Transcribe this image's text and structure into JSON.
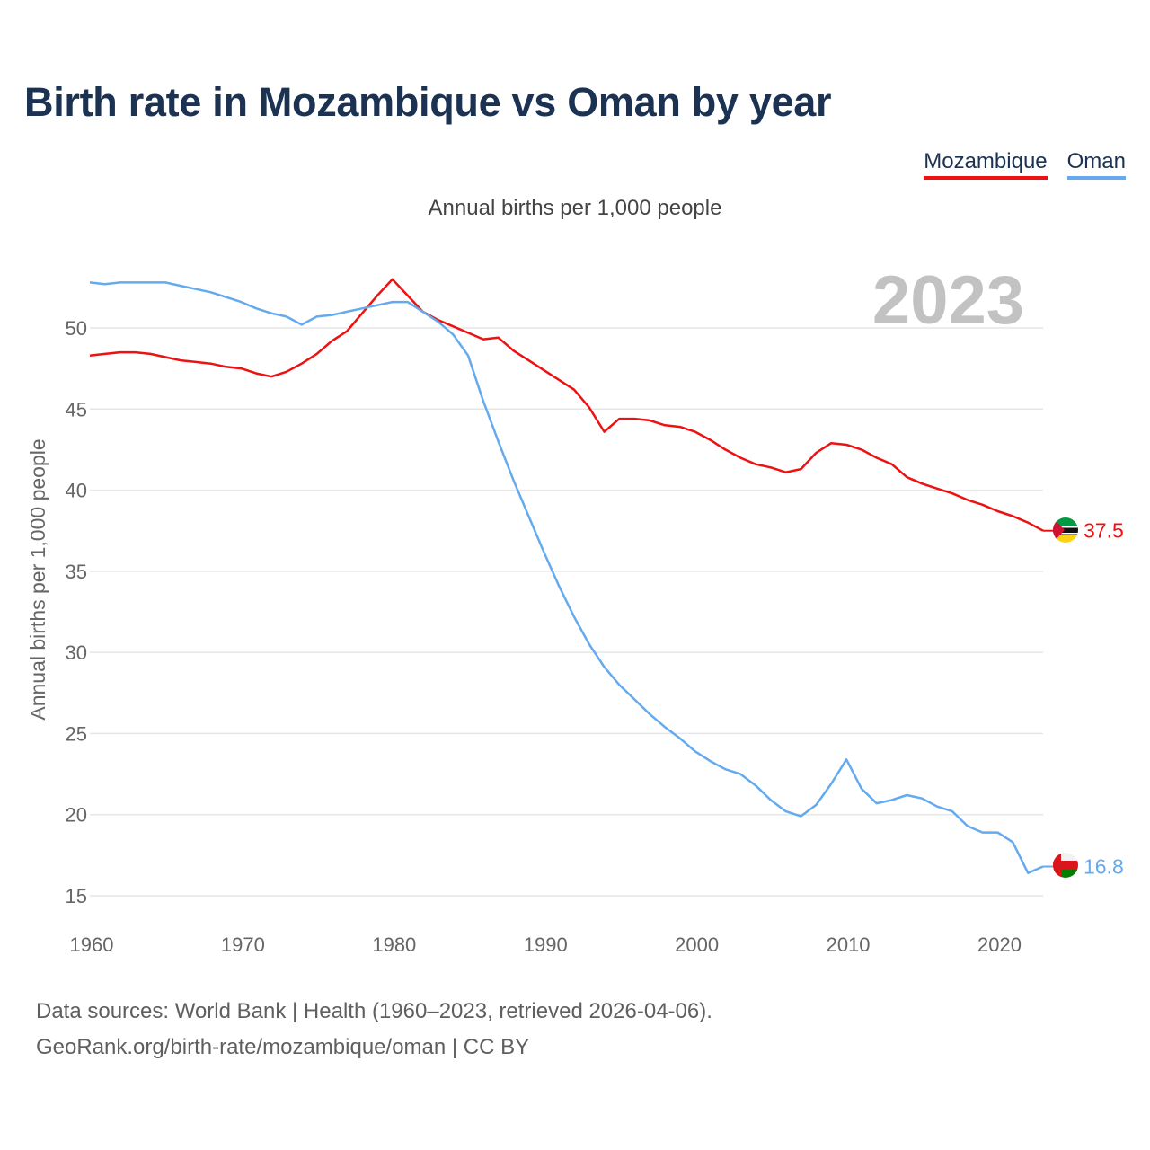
{
  "title": "Birth rate in Mozambique vs Oman by year",
  "subtitle": "Annual births per 1,000 people",
  "legend": [
    {
      "label": "Mozambique",
      "color": "#ee1111"
    },
    {
      "label": "Oman",
      "color": "#66aaee"
    }
  ],
  "footer": {
    "line1": "Data sources: World Bank | Health (1960–2023, retrieved 2026-04-06).",
    "line2": "GeoRank.org/birth-rate/mozambique/oman | CC BY"
  },
  "chart_data": {
    "type": "line",
    "title": "Birth rate in Mozambique vs Oman by year",
    "ylabel": "Annual births per 1,000 people",
    "xlabel": "",
    "year_label": "2023",
    "xlim": [
      1960,
      2023
    ],
    "ylim": [
      15,
      53
    ],
    "x_ticks": [
      1960,
      1970,
      1980,
      1990,
      2000,
      2010,
      2020
    ],
    "y_ticks": [
      15,
      20,
      25,
      30,
      35,
      40,
      45,
      50
    ],
    "grid": true,
    "x": [
      1960,
      1961,
      1962,
      1963,
      1964,
      1965,
      1966,
      1967,
      1968,
      1969,
      1970,
      1971,
      1972,
      1973,
      1974,
      1975,
      1976,
      1977,
      1978,
      1979,
      1980,
      1981,
      1982,
      1983,
      1984,
      1985,
      1986,
      1987,
      1988,
      1989,
      1990,
      1991,
      1992,
      1993,
      1994,
      1995,
      1996,
      1997,
      1998,
      1999,
      2000,
      2001,
      2002,
      2003,
      2004,
      2005,
      2006,
      2007,
      2008,
      2009,
      2010,
      2011,
      2012,
      2013,
      2014,
      2015,
      2016,
      2017,
      2018,
      2019,
      2020,
      2021,
      2022,
      2023
    ],
    "series": [
      {
        "name": "Mozambique",
        "color": "#ee1111",
        "end_label": "37.5",
        "values": [
          48.3,
          48.4,
          48.5,
          48.5,
          48.4,
          48.2,
          48.0,
          47.9,
          47.8,
          47.6,
          47.5,
          47.2,
          47.0,
          47.3,
          47.8,
          48.4,
          49.2,
          49.8,
          50.9,
          52.0,
          53.0,
          52.0,
          51.0,
          50.5,
          50.1,
          49.7,
          49.3,
          49.4,
          48.6,
          48.0,
          47.4,
          46.8,
          46.2,
          45.1,
          43.6,
          44.4,
          44.4,
          44.3,
          44.0,
          43.9,
          43.6,
          43.1,
          42.5,
          42.0,
          41.6,
          41.4,
          41.1,
          41.3,
          42.3,
          42.9,
          42.8,
          42.5,
          42.0,
          41.6,
          40.8,
          40.4,
          40.1,
          39.8,
          39.4,
          39.1,
          38.7,
          38.4,
          38.0,
          37.5
        ]
      },
      {
        "name": "Oman",
        "color": "#66aaee",
        "end_label": "16.8",
        "values": [
          52.8,
          52.7,
          52.8,
          52.8,
          52.8,
          52.8,
          52.6,
          52.4,
          52.2,
          51.9,
          51.6,
          51.2,
          50.9,
          50.7,
          50.2,
          50.7,
          50.8,
          51.0,
          51.2,
          51.4,
          51.6,
          51.6,
          51.0,
          50.4,
          49.6,
          48.3,
          45.5,
          43.0,
          40.6,
          38.4,
          36.2,
          34.1,
          32.2,
          30.5,
          29.1,
          28.0,
          27.1,
          26.2,
          25.4,
          24.7,
          23.9,
          23.3,
          22.8,
          22.5,
          21.8,
          20.9,
          20.2,
          19.9,
          20.6,
          21.9,
          23.4,
          21.6,
          20.7,
          20.9,
          21.2,
          21.0,
          20.5,
          20.2,
          19.3,
          18.9,
          18.9,
          18.3,
          16.4,
          16.8
        ]
      }
    ]
  }
}
